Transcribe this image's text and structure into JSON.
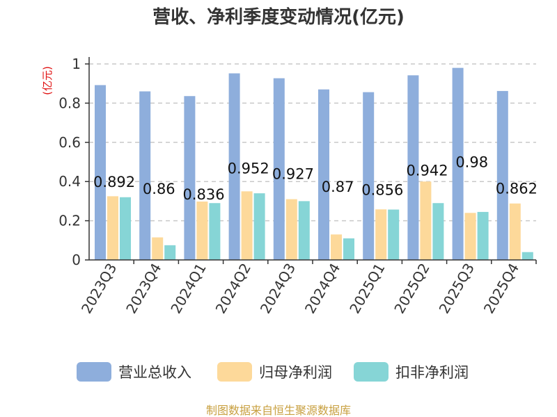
{
  "chart_data": {
    "type": "bar",
    "title": "营收、净利季度变动情况(亿元)",
    "ylabel": "(亿元)",
    "xlabel": "",
    "ylim": [
      0,
      1
    ],
    "yticks": [
      0,
      0.2,
      0.4,
      0.6,
      0.8,
      1
    ],
    "ytick_labels": [
      "0",
      "0.2",
      "0.4",
      "0.6",
      "0.8",
      "1"
    ],
    "grid": true,
    "legend_position": "bottom",
    "categories": [
      "2023Q3",
      "2023Q4",
      "2024Q1",
      "2024Q2",
      "2024Q3",
      "2024Q4",
      "2025Q1",
      "2025Q2",
      "2025Q3",
      "2025Q4"
    ],
    "series": [
      {
        "name": "营业总收入",
        "color": "#8eaedc",
        "values": [
          0.892,
          0.86,
          0.836,
          0.952,
          0.927,
          0.87,
          0.856,
          0.942,
          0.98,
          0.862
        ],
        "labels": [
          "0.892",
          "0.86",
          "0.836",
          "0.952",
          "0.927",
          "0.87",
          "0.856",
          "0.942",
          "0.98",
          "0.862"
        ]
      },
      {
        "name": "归母净利润",
        "color": "#fdd99a",
        "values": [
          0.325,
          0.115,
          0.298,
          0.35,
          0.31,
          0.13,
          0.258,
          0.4,
          0.24,
          0.288
        ]
      },
      {
        "name": "扣非净利润",
        "color": "#86d5d6",
        "values": [
          0.32,
          0.075,
          0.29,
          0.34,
          0.3,
          0.11,
          0.257,
          0.29,
          0.245,
          0.04
        ]
      }
    ]
  },
  "source": "制图数据来自恒生聚源数据库"
}
